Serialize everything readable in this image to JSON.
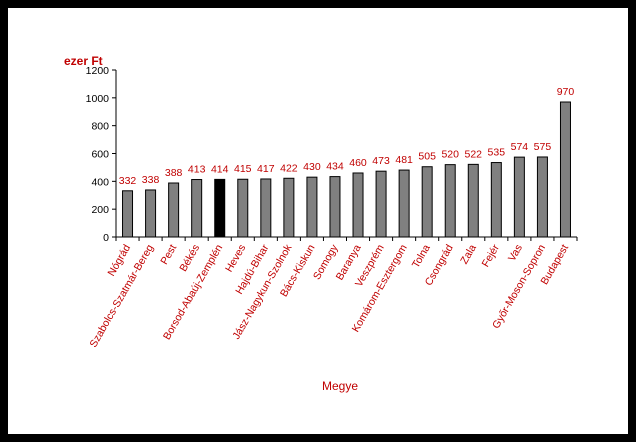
{
  "chart_data": {
    "type": "bar",
    "title": "",
    "ylabel": "ezer Ft",
    "xlabel": "Megye",
    "ylim": [
      0,
      1200
    ],
    "yticks": [
      0,
      200,
      400,
      600,
      800,
      1000,
      1200
    ],
    "grid": false,
    "legend": "none",
    "categories": [
      "Nógrád",
      "Szabolcs-Szatmár-Bereg",
      "Pest",
      "Békés",
      "Borsod-Abaúj-Zemplén",
      "Heves",
      "Hajdú-Bihar",
      "Jász-Nagykun-Szolnok",
      "Bács-Kiskun",
      "Somogy",
      "Baranya",
      "Veszprém",
      "Komárom-Esztergom",
      "Tolna",
      "Csongrád",
      "Zala",
      "Fejér",
      "Vas",
      "Győr-Moson-Sopron",
      "Budapest"
    ],
    "values": [
      332,
      338,
      388,
      413,
      414,
      415,
      417,
      422,
      430,
      434,
      460,
      473,
      481,
      505,
      520,
      522,
      535,
      574,
      575,
      970
    ],
    "highlight_index": 4,
    "colors": {
      "bar": "#808080",
      "highlight": "#000000",
      "labels": "#c00000",
      "axis": "#000000"
    }
  }
}
